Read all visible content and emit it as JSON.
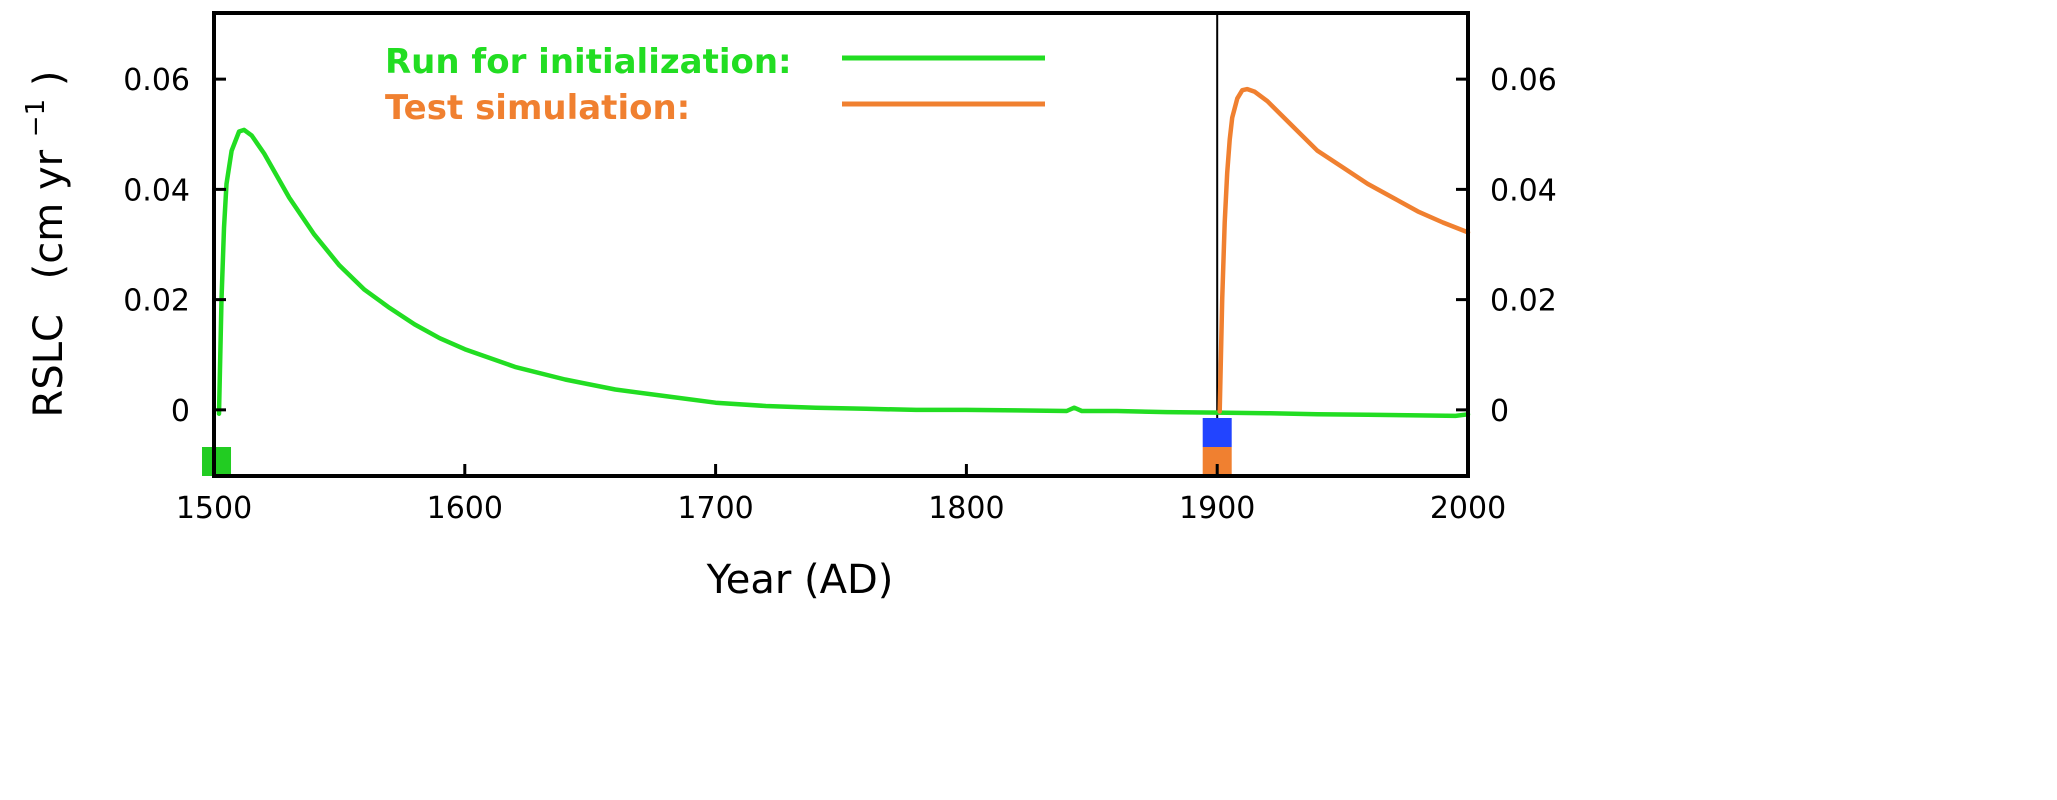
{
  "chart_data": {
    "type": "line",
    "title": "",
    "xlabel": "Year (AD)",
    "ylabel": "RSLC",
    "ylabel_unit": "(cm yr",
    "ylabel_exponent": "−1",
    "ylabel_close": ")",
    "xlim": [
      1500,
      2000
    ],
    "ylim": [
      -0.012,
      0.072
    ],
    "x_ticks": [
      "1500",
      "1600",
      "1700",
      "1800",
      "1900",
      "2000"
    ],
    "y_ticks": [
      "0",
      "0.02",
      "0.04",
      "0.06"
    ],
    "y_ticks_right": [
      "0",
      "0.02",
      "0.04",
      "0.06"
    ],
    "grid": false,
    "legend_position": "top-center",
    "vertical_line_x": 1900,
    "colors": {
      "init": "#22dd22",
      "test": "#f08030",
      "marker_blue": "#2244ff",
      "marker_green": "#22cc22",
      "marker_orange": "#f08030"
    },
    "markers": [
      {
        "name": "init-start-marker",
        "x": 1501,
        "color": "#22cc22",
        "row": "bottom"
      },
      {
        "name": "test-start-marker-blue",
        "x": 1900,
        "color": "#2244ff",
        "row": "top"
      },
      {
        "name": "test-start-marker-orange",
        "x": 1900,
        "color": "#f08030",
        "row": "bottom"
      }
    ],
    "series": [
      {
        "name": "Run for initialization:",
        "color": "#22dd22",
        "x": [
          1502,
          1503,
          1504,
          1505,
          1507,
          1510,
          1512,
          1515,
          1520,
          1525,
          1530,
          1540,
          1550,
          1560,
          1570,
          1580,
          1590,
          1600,
          1620,
          1640,
          1660,
          1680,
          1700,
          1720,
          1740,
          1760,
          1780,
          1800,
          1820,
          1840,
          1843,
          1846,
          1860,
          1880,
          1900,
          1920,
          1940,
          1960,
          1980,
          1995,
          2000
        ],
        "values": [
          -0.0007,
          0.02,
          0.033,
          0.041,
          0.047,
          0.0505,
          0.0508,
          0.0498,
          0.0465,
          0.0425,
          0.0385,
          0.0318,
          0.0262,
          0.0218,
          0.0185,
          0.0155,
          0.013,
          0.011,
          0.0078,
          0.0055,
          0.0037,
          0.0025,
          0.0013,
          0.0007,
          0.0004,
          0.0002,
          0.0,
          0.0,
          -0.0001,
          -0.0002,
          0.0004,
          -0.0002,
          -0.0002,
          -0.0004,
          -0.0005,
          -0.0006,
          -0.0008,
          -0.0009,
          -0.001,
          -0.0011,
          -0.0008
        ]
      },
      {
        "name": "Test simulation:",
        "color": "#f08030",
        "x": [
          1901,
          1902,
          1903,
          1904,
          1905,
          1906,
          1908,
          1910,
          1912,
          1915,
          1920,
          1930,
          1940,
          1950,
          1960,
          1970,
          1980,
          1990,
          2000
        ],
        "values": [
          -0.0003,
          0.02,
          0.034,
          0.043,
          0.049,
          0.053,
          0.0565,
          0.058,
          0.0582,
          0.0577,
          0.056,
          0.0515,
          0.047,
          0.044,
          0.041,
          0.0385,
          0.036,
          0.034,
          0.0322
        ]
      }
    ]
  }
}
